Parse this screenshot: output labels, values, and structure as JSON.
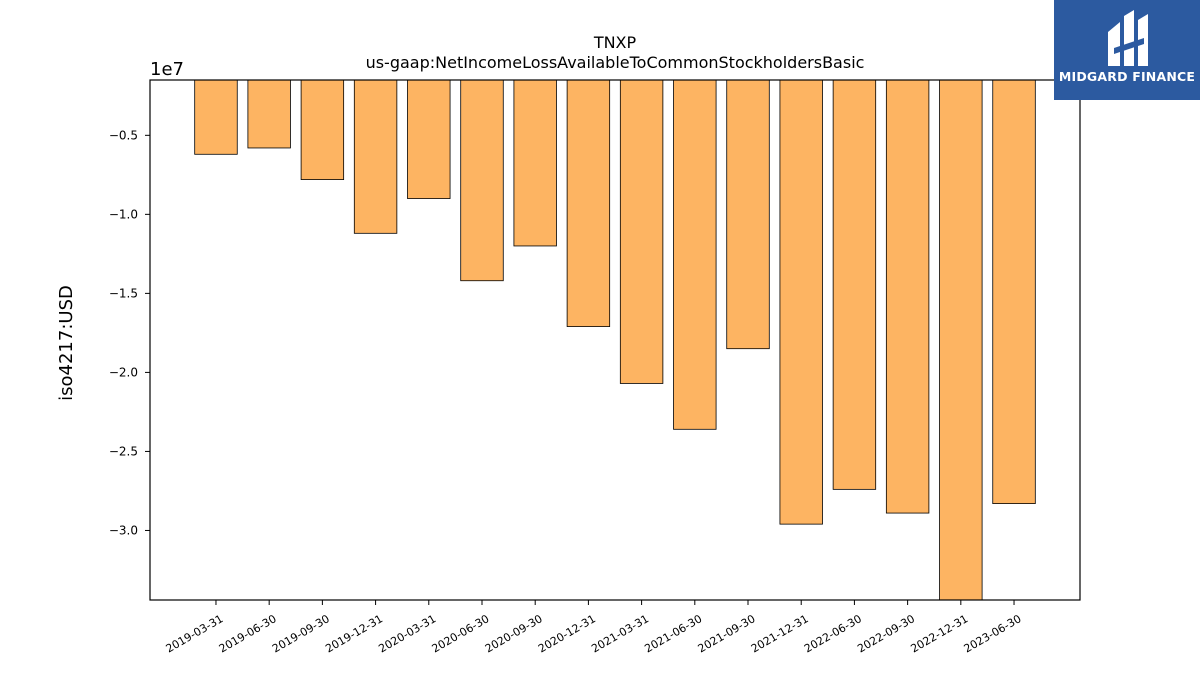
{
  "chart_data": {
    "type": "bar",
    "title": "TNXP",
    "subtitle": "us-gaap:NetIncomeLossAvailableToCommonStockholdersBasic",
    "ylabel": "iso4217:USD",
    "xlabel": "",
    "offset_label": "1e7",
    "categories": [
      "2019-03-31",
      "2019-06-30",
      "2019-09-30",
      "2019-12-31",
      "2020-03-31",
      "2020-06-30",
      "2020-09-30",
      "2020-12-31",
      "2021-03-31",
      "2021-06-30",
      "2021-09-30",
      "2021-12-31",
      "2022-06-30",
      "2022-09-30",
      "2022-12-31",
      "2023-06-30"
    ],
    "values": [
      -6200000,
      -5800000,
      -7800000,
      -11200000,
      -9000000,
      -14200000,
      -12000000,
      -17100000,
      -20700000,
      -23600000,
      -18500000,
      -29600000,
      -27400000,
      -28900000,
      -34400000,
      -28300000
    ],
    "ylim": [
      -34400000,
      -1500000
    ],
    "yticks": [
      -5000000,
      -10000000,
      -15000000,
      -20000000,
      -25000000,
      -30000000
    ],
    "ytick_labels": [
      "−0.5",
      "−1.0",
      "−1.5",
      "−2.0",
      "−2.5",
      "−3.0"
    ],
    "bar_color": "#fdb462",
    "grid": false,
    "legend": "none"
  },
  "logo": {
    "text": "MIDGARD FINANCE",
    "color": "#2c5aa0"
  }
}
